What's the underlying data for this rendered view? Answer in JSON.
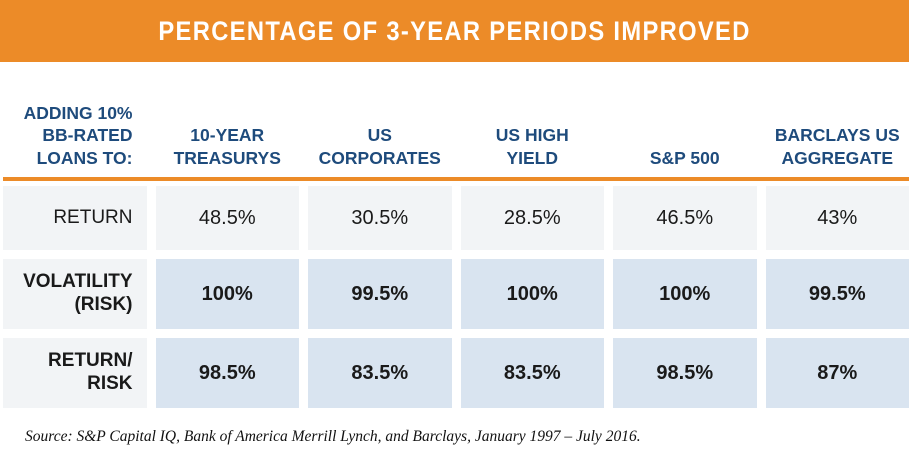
{
  "banner": {
    "title": "PERCENTAGE OF 3-YEAR PERIODS IMPROVED"
  },
  "table": {
    "corner_header": "ADDING 10%\nBB-RATED\nLOANS TO:",
    "column_headers": [
      "10-YEAR\nTREASURYS",
      "US\nCORPORATES",
      "US HIGH\nYIELD",
      "S&P 500",
      "BARCLAYS US\nAGGREGATE"
    ],
    "rows": [
      {
        "label": "RETURN",
        "values": [
          "48.5%",
          "30.5%",
          "28.5%",
          "46.5%",
          "43%"
        ]
      },
      {
        "label": "VOLATILITY\n(RISK)",
        "values": [
          "100%",
          "99.5%",
          "100%",
          "100%",
          "99.5%"
        ]
      },
      {
        "label": "RETURN/\nRISK",
        "values": [
          "98.5%",
          "83.5%",
          "83.5%",
          "98.5%",
          "87%"
        ]
      }
    ]
  },
  "source": "Source: S&P Capital IQ, Bank of America Merrill Lynch, and Barclays, January 1997 – July 2016.",
  "colors": {
    "banner_orange": "#EC8B28",
    "header_navy": "#1E4B7C",
    "cell_gray": "#F2F4F6",
    "cell_blue": "#D9E4F0",
    "text_black": "#1A1A1A"
  },
  "chart_data": {
    "type": "table",
    "title": "PERCENTAGE OF 3-YEAR PERIODS IMPROVED",
    "row_header": "ADDING 10% BB-RATED LOANS TO:",
    "columns": [
      "10-YEAR TREASURYS",
      "US CORPORATES",
      "US HIGH YIELD",
      "S&P 500",
      "BARCLAYS US AGGREGATE"
    ],
    "rows": [
      {
        "label": "RETURN",
        "values_pct": [
          48.5,
          30.5,
          28.5,
          46.5,
          43
        ]
      },
      {
        "label": "VOLATILITY (RISK)",
        "values_pct": [
          100,
          99.5,
          100,
          100,
          99.5
        ]
      },
      {
        "label": "RETURN/RISK",
        "values_pct": [
          98.5,
          83.5,
          83.5,
          98.5,
          87
        ]
      }
    ],
    "source": "Source: S&P Capital IQ, Bank of America Merrill Lynch, and Barclays, January 1997 – July 2016."
  }
}
